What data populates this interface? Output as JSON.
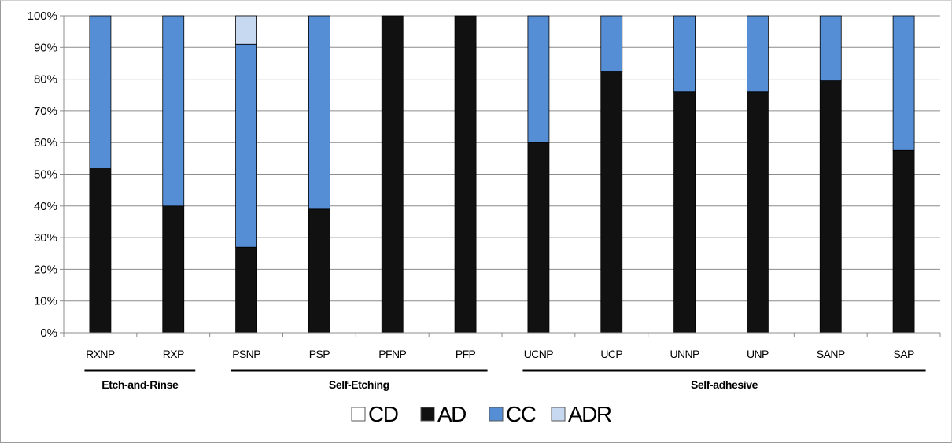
{
  "chart_data": {
    "type": "bar",
    "stacked": true,
    "y_format": "percent",
    "ylim": [
      0,
      100
    ],
    "y_ticks": [
      0,
      10,
      20,
      30,
      40,
      50,
      60,
      70,
      80,
      90,
      100
    ],
    "y_tick_labels": [
      "0%",
      "10%",
      "20%",
      "30%",
      "40%",
      "50%",
      "60%",
      "70%",
      "80%",
      "90%",
      "100%"
    ],
    "grid": true,
    "legend_position": "bottom",
    "categories": [
      "RXNP",
      "RXP",
      "PSNP",
      "PSP",
      "PFNP",
      "PFP",
      "UCNP",
      "UCP",
      "UNNP",
      "UNP",
      "SANP",
      "SAP"
    ],
    "series": [
      {
        "name": "CD",
        "color": "#ffffff",
        "values": [
          0,
          0,
          0,
          0,
          0,
          0,
          0,
          0,
          0,
          0,
          0,
          0
        ]
      },
      {
        "name": "AD",
        "color": "#111111",
        "values": [
          52,
          40,
          27,
          39,
          100,
          100,
          60,
          82.5,
          76,
          76,
          79.5,
          57.5
        ]
      },
      {
        "name": "CC",
        "color": "#558ed5",
        "values": [
          48,
          60,
          64,
          61,
          0,
          0,
          40,
          17.5,
          24,
          24,
          20.5,
          42.5
        ]
      },
      {
        "name": "ADR",
        "color": "#c6d9f1",
        "values": [
          0,
          0,
          9,
          0,
          0,
          0,
          0,
          0,
          0,
          0,
          0,
          0
        ]
      }
    ],
    "groups": [
      {
        "label": "Etch-and-Rinse",
        "categories": [
          "RXNP",
          "RXP"
        ]
      },
      {
        "label": "Self-Etching",
        "categories": [
          "PSNP",
          "PSP",
          "PFNP",
          "PFP"
        ]
      },
      {
        "label": "Self-adhesive",
        "categories": [
          "UCNP",
          "UCP",
          "UNNP",
          "UNP",
          "SANP",
          "SAP"
        ]
      }
    ]
  }
}
